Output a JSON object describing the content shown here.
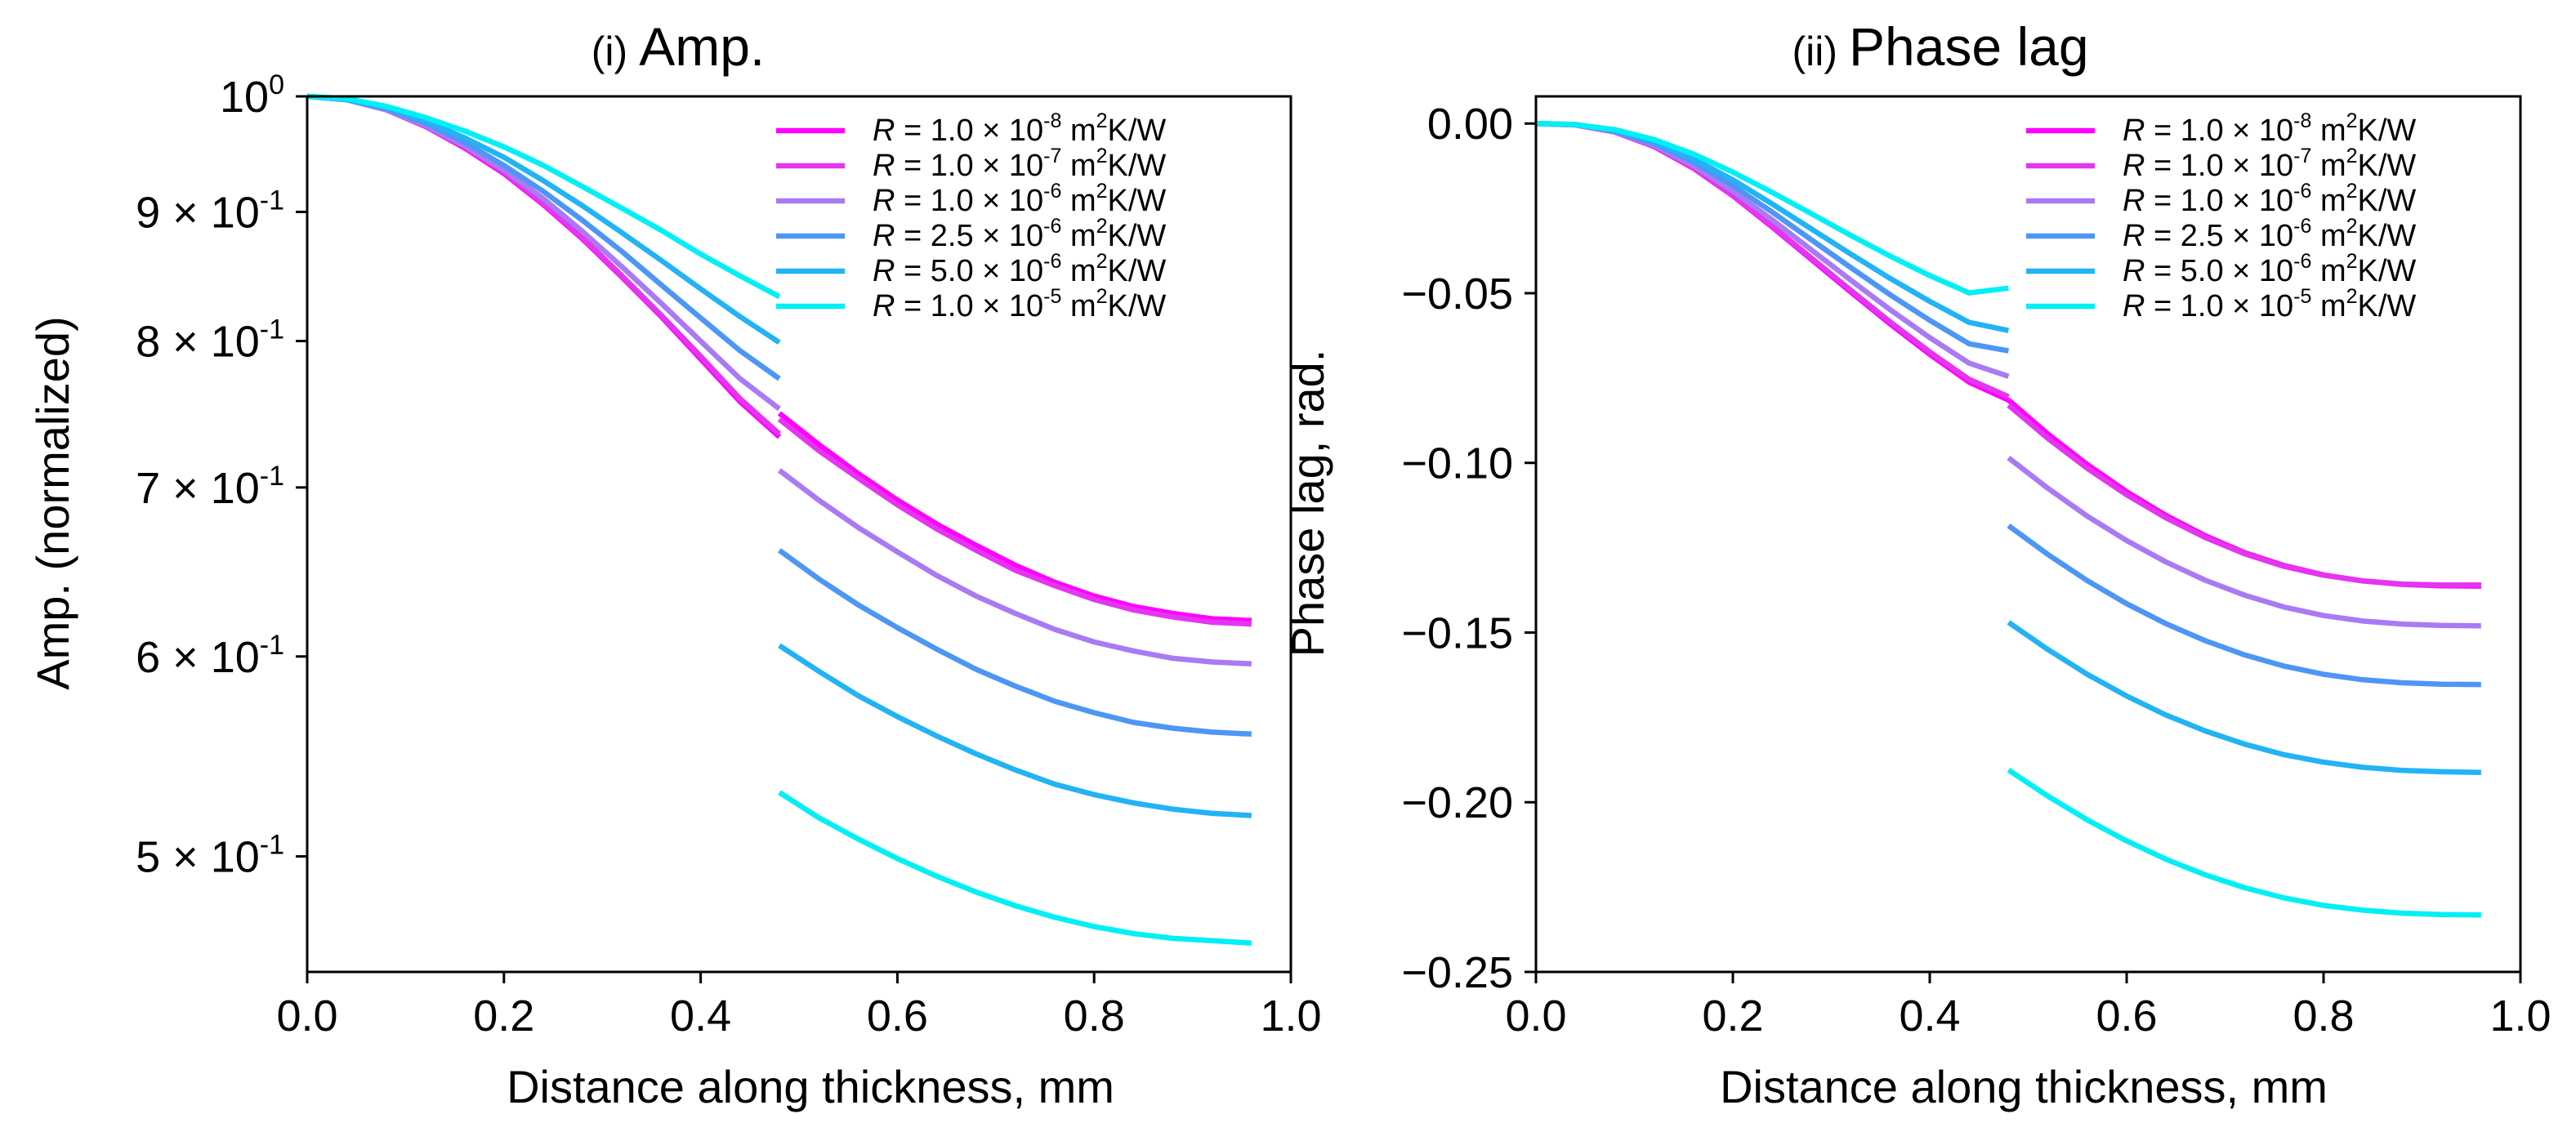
{
  "colors": [
    "#ff00ff",
    "#e535f0",
    "#a97af4",
    "#4d96f5",
    "#22b3f5",
    "#00f0f5"
  ],
  "legend_labels": [
    {
      "var": "R",
      "eq": " = 1.0 × 10",
      "exp": "-8",
      "unit_a": " m",
      "unit_sup": "2",
      "unit_b": "K/W"
    },
    {
      "var": "R",
      "eq": " = 1.0 × 10",
      "exp": "-7",
      "unit_a": " m",
      "unit_sup": "2",
      "unit_b": "K/W"
    },
    {
      "var": "R",
      "eq": " = 1.0 × 10",
      "exp": "-6",
      "unit_a": " m",
      "unit_sup": "2",
      "unit_b": "K/W"
    },
    {
      "var": "R",
      "eq": " = 2.5 × 10",
      "exp": "-6",
      "unit_a": " m",
      "unit_sup": "2",
      "unit_b": "K/W"
    },
    {
      "var": "R",
      "eq": " = 5.0 × 10",
      "exp": "-6",
      "unit_a": " m",
      "unit_sup": "2",
      "unit_b": "K/W"
    },
    {
      "var": "R",
      "eq": " = 1.0 × 10",
      "exp": "-5",
      "unit_a": " m",
      "unit_sup": "2",
      "unit_b": "K/W"
    }
  ],
  "chart_data": [
    {
      "type": "line",
      "title_prefix": "(i)",
      "title": "Amp.",
      "xlabel": "Distance along thickness, mm",
      "ylabel": "Amp. (normalized)",
      "xlim": [
        0.0,
        1.0
      ],
      "ylim": [
        0.45,
        1.0
      ],
      "yscale": "log",
      "xticks": [
        "0.0",
        "0.2",
        "0.4",
        "0.6",
        "0.8",
        "1.0"
      ],
      "yticks": [
        {
          "value": 1.0,
          "base": "10",
          "exp": "0"
        },
        {
          "value": 0.9,
          "base": "9 × 10",
          "exp": "-1"
        },
        {
          "value": 0.8,
          "base": "8 × 10",
          "exp": "-1"
        },
        {
          "value": 0.7,
          "base": "7 × 10",
          "exp": "-1"
        },
        {
          "value": 0.6,
          "base": "6 × 10",
          "exp": "-1"
        },
        {
          "value": 0.5,
          "base": "5 × 10",
          "exp": "-1"
        }
      ],
      "legend_position": "upper right",
      "series": [
        {
          "name": "R = 1.0e-8 m2K/W",
          "layer1_x": [
            0,
            0.04,
            0.08,
            0.12,
            0.16,
            0.2,
            0.24,
            0.28,
            0.32,
            0.36,
            0.4,
            0.44,
            0.48
          ],
          "layer1_y": [
            1.0,
            0.997,
            0.988,
            0.973,
            0.954,
            0.932,
            0.906,
            0.878,
            0.848,
            0.818,
            0.787,
            0.757,
            0.733
          ],
          "layer2_x": [
            0.48,
            0.52,
            0.56,
            0.6,
            0.64,
            0.68,
            0.72,
            0.76,
            0.8,
            0.84,
            0.88,
            0.92,
            0.96
          ],
          "layer2_y": [
            0.749,
            0.728,
            0.709,
            0.692,
            0.677,
            0.664,
            0.652,
            0.642,
            0.634,
            0.628,
            0.624,
            0.621,
            0.62
          ]
        },
        {
          "name": "R = 1.0e-7 m2K/W",
          "layer1_x": [
            0,
            0.04,
            0.08,
            0.12,
            0.16,
            0.2,
            0.24,
            0.28,
            0.32,
            0.36,
            0.4,
            0.44,
            0.48
          ],
          "layer1_y": [
            1.0,
            0.997,
            0.988,
            0.973,
            0.955,
            0.933,
            0.907,
            0.879,
            0.849,
            0.819,
            0.789,
            0.759,
            0.735
          ],
          "layer2_x": [
            0.48,
            0.52,
            0.56,
            0.6,
            0.64,
            0.68,
            0.72,
            0.76,
            0.8,
            0.84,
            0.88,
            0.92,
            0.96
          ],
          "layer2_y": [
            0.745,
            0.724,
            0.706,
            0.689,
            0.674,
            0.661,
            0.649,
            0.64,
            0.632,
            0.626,
            0.622,
            0.619,
            0.618
          ]
        },
        {
          "name": "R = 1.0e-6 m2K/W",
          "layer1_x": [
            0,
            0.04,
            0.08,
            0.12,
            0.16,
            0.2,
            0.24,
            0.28,
            0.32,
            0.36,
            0.4,
            0.44,
            0.48
          ],
          "layer1_y": [
            1.0,
            0.997,
            0.988,
            0.974,
            0.956,
            0.935,
            0.911,
            0.884,
            0.856,
            0.828,
            0.8,
            0.773,
            0.752
          ],
          "layer2_x": [
            0.48,
            0.52,
            0.56,
            0.6,
            0.64,
            0.68,
            0.72,
            0.76,
            0.8,
            0.84,
            0.88,
            0.92,
            0.96
          ],
          "layer2_y": [
            0.711,
            0.692,
            0.675,
            0.66,
            0.646,
            0.634,
            0.624,
            0.615,
            0.608,
            0.603,
            0.599,
            0.597,
            0.596
          ]
        },
        {
          "name": "R = 2.5e-6 m2K/W",
          "layer1_x": [
            0,
            0.04,
            0.08,
            0.12,
            0.16,
            0.2,
            0.24,
            0.28,
            0.32,
            0.36,
            0.4,
            0.44,
            0.48
          ],
          "layer1_y": [
            1.0,
            0.997,
            0.989,
            0.976,
            0.959,
            0.939,
            0.917,
            0.893,
            0.868,
            0.842,
            0.817,
            0.793,
            0.773
          ],
          "layer2_x": [
            0.48,
            0.52,
            0.56,
            0.6,
            0.64,
            0.68,
            0.72,
            0.76,
            0.8,
            0.84,
            0.88,
            0.92,
            0.96
          ],
          "layer2_y": [
            0.661,
            0.644,
            0.629,
            0.616,
            0.604,
            0.593,
            0.584,
            0.576,
            0.57,
            0.565,
            0.562,
            0.56,
            0.559
          ]
        },
        {
          "name": "R = 5.0e-6 m2K/W",
          "layer1_x": [
            0,
            0.04,
            0.08,
            0.12,
            0.16,
            0.2,
            0.24,
            0.28,
            0.32,
            0.36,
            0.4,
            0.44,
            0.48
          ],
          "layer1_y": [
            1.0,
            0.997,
            0.99,
            0.978,
            0.963,
            0.946,
            0.926,
            0.905,
            0.883,
            0.861,
            0.839,
            0.818,
            0.799
          ],
          "layer2_x": [
            0.48,
            0.52,
            0.56,
            0.6,
            0.64,
            0.68,
            0.72,
            0.76,
            0.8,
            0.84,
            0.88,
            0.92,
            0.96
          ],
          "layer2_y": [
            0.606,
            0.592,
            0.579,
            0.568,
            0.558,
            0.549,
            0.541,
            0.534,
            0.529,
            0.525,
            0.522,
            0.52,
            0.519
          ]
        },
        {
          "name": "R = 1.0e-5 m2K/W",
          "layer1_x": [
            0,
            0.04,
            0.08,
            0.12,
            0.16,
            0.2,
            0.24,
            0.28,
            0.32,
            0.36,
            0.4,
            0.44,
            0.48
          ],
          "layer1_y": [
            1.0,
            0.998,
            0.991,
            0.981,
            0.969,
            0.955,
            0.939,
            0.921,
            0.903,
            0.885,
            0.866,
            0.849,
            0.833
          ],
          "layer2_x": [
            0.48,
            0.52,
            0.56,
            0.6,
            0.64,
            0.68,
            0.72,
            0.76,
            0.8,
            0.84,
            0.88,
            0.92,
            0.96
          ],
          "layer2_y": [
            0.53,
            0.518,
            0.508,
            0.499,
            0.491,
            0.484,
            0.478,
            0.473,
            0.469,
            0.466,
            0.464,
            0.463,
            0.462
          ]
        }
      ]
    },
    {
      "type": "line",
      "title_prefix": "(ii)",
      "title": "Phase lag",
      "xlabel": "Distance along thickness, mm",
      "ylabel": "Phase lag, rad.",
      "xlim": [
        0.0,
        1.0
      ],
      "ylim": [
        -0.25,
        0.008
      ],
      "yscale": "linear",
      "xticks": [
        "0.0",
        "0.2",
        "0.4",
        "0.6",
        "0.8",
        "1.0"
      ],
      "yticks": [
        {
          "value": 0.0,
          "label": "0.00"
        },
        {
          "value": -0.05,
          "label": "−0.05"
        },
        {
          "value": -0.1,
          "label": "−0.10"
        },
        {
          "value": -0.15,
          "label": "−0.15"
        },
        {
          "value": -0.2,
          "label": "−0.20"
        },
        {
          "value": -0.25,
          "label": "−0.25"
        }
      ],
      "legend_position": "upper right",
      "series": [
        {
          "name": "R = 1.0e-8 m2K/W",
          "layer1_x": [
            0,
            0.04,
            0.08,
            0.12,
            0.16,
            0.2,
            0.24,
            0.28,
            0.32,
            0.36,
            0.4,
            0.44,
            0.48
          ],
          "layer1_y": [
            0,
            -0.0004,
            -0.0025,
            -0.0068,
            -0.0132,
            -0.0213,
            -0.0305,
            -0.0401,
            -0.0497,
            -0.0591,
            -0.068,
            -0.0762,
            -0.0815
          ],
          "layer2_x": [
            0.48,
            0.52,
            0.56,
            0.6,
            0.64,
            0.68,
            0.72,
            0.76,
            0.8,
            0.84,
            0.88,
            0.92,
            0.96
          ],
          "layer2_y": [
            -0.0815,
            -0.0915,
            -0.1005,
            -0.1085,
            -0.1155,
            -0.1215,
            -0.1265,
            -0.1303,
            -0.133,
            -0.1348,
            -0.1358,
            -0.1362,
            -0.1363
          ]
        },
        {
          "name": "R = 1.0e-7 m2K/W",
          "layer1_x": [
            0,
            0.04,
            0.08,
            0.12,
            0.16,
            0.2,
            0.24,
            0.28,
            0.32,
            0.36,
            0.4,
            0.44,
            0.48
          ],
          "layer1_y": [
            0,
            -0.0004,
            -0.0025,
            -0.0068,
            -0.0131,
            -0.0211,
            -0.0302,
            -0.0397,
            -0.0492,
            -0.0585,
            -0.0673,
            -0.0754,
            -0.0805
          ],
          "layer2_x": [
            0.48,
            0.52,
            0.56,
            0.6,
            0.64,
            0.68,
            0.72,
            0.76,
            0.8,
            0.84,
            0.88,
            0.92,
            0.96
          ],
          "layer2_y": [
            -0.083,
            -0.0928,
            -0.1016,
            -0.1094,
            -0.1162,
            -0.122,
            -0.1268,
            -0.1305,
            -0.1331,
            -0.1348,
            -0.1357,
            -0.136,
            -0.136
          ]
        },
        {
          "name": "R = 1.0e-6 m2K/W",
          "layer1_x": [
            0,
            0.04,
            0.08,
            0.12,
            0.16,
            0.2,
            0.24,
            0.28,
            0.32,
            0.36,
            0.4,
            0.44,
            0.48
          ],
          "layer1_y": [
            0,
            -0.0004,
            -0.0024,
            -0.0064,
            -0.0124,
            -0.0199,
            -0.0284,
            -0.0373,
            -0.0462,
            -0.0549,
            -0.0631,
            -0.0706,
            -0.0745
          ],
          "layer2_x": [
            0.48,
            0.52,
            0.56,
            0.6,
            0.64,
            0.68,
            0.72,
            0.76,
            0.8,
            0.84,
            0.88,
            0.92,
            0.96
          ],
          "layer2_y": [
            -0.0985,
            -0.1075,
            -0.1157,
            -0.1229,
            -0.1292,
            -0.1346,
            -0.139,
            -0.1425,
            -0.145,
            -0.1466,
            -0.1475,
            -0.1479,
            -0.148
          ]
        },
        {
          "name": "R = 2.5e-6 m2K/W",
          "layer1_x": [
            0,
            0.04,
            0.08,
            0.12,
            0.16,
            0.2,
            0.24,
            0.28,
            0.32,
            0.36,
            0.4,
            0.44,
            0.48
          ],
          "layer1_y": [
            0,
            -0.0003,
            -0.0022,
            -0.0059,
            -0.0114,
            -0.0183,
            -0.0261,
            -0.0343,
            -0.0425,
            -0.0505,
            -0.058,
            -0.0649,
            -0.067
          ],
          "layer2_x": [
            0.48,
            0.52,
            0.56,
            0.6,
            0.64,
            0.68,
            0.72,
            0.76,
            0.8,
            0.84,
            0.88,
            0.92,
            0.96
          ],
          "layer2_y": [
            -0.1185,
            -0.127,
            -0.1347,
            -0.1415,
            -0.1474,
            -0.1524,
            -0.1566,
            -0.1599,
            -0.1623,
            -0.1639,
            -0.1648,
            -0.1652,
            -0.1653
          ]
        },
        {
          "name": "R = 5.0e-6 m2K/W",
          "layer1_x": [
            0,
            0.04,
            0.08,
            0.12,
            0.16,
            0.2,
            0.24,
            0.28,
            0.32,
            0.36,
            0.4,
            0.44,
            0.48
          ],
          "layer1_y": [
            0,
            -0.0003,
            -0.002,
            -0.0054,
            -0.0104,
            -0.0166,
            -0.0237,
            -0.0311,
            -0.0385,
            -0.0457,
            -0.0524,
            -0.0586,
            -0.061
          ],
          "layer2_x": [
            0.48,
            0.52,
            0.56,
            0.6,
            0.64,
            0.68,
            0.72,
            0.76,
            0.8,
            0.84,
            0.88,
            0.92,
            0.96
          ],
          "layer2_y": [
            -0.147,
            -0.155,
            -0.1623,
            -0.1687,
            -0.1743,
            -0.179,
            -0.1829,
            -0.186,
            -0.1882,
            -0.1897,
            -0.1906,
            -0.191,
            -0.1912
          ]
        },
        {
          "name": "R = 1.0e-5 m2K/W",
          "layer1_x": [
            0,
            0.04,
            0.08,
            0.12,
            0.16,
            0.2,
            0.24,
            0.28,
            0.32,
            0.36,
            0.4,
            0.44,
            0.48
          ],
          "layer1_y": [
            0,
            -0.0003,
            -0.0018,
            -0.0047,
            -0.009,
            -0.0143,
            -0.0203,
            -0.0266,
            -0.033,
            -0.0391,
            -0.0448,
            -0.0499,
            -0.0485
          ],
          "layer2_x": [
            0.48,
            0.52,
            0.56,
            0.6,
            0.64,
            0.68,
            0.72,
            0.76,
            0.8,
            0.84,
            0.88,
            0.92,
            0.96
          ],
          "layer2_y": [
            -0.1905,
            -0.1982,
            -0.2052,
            -0.2114,
            -0.2168,
            -0.2214,
            -0.2252,
            -0.2282,
            -0.2304,
            -0.2318,
            -0.2327,
            -0.2331,
            -0.2332
          ]
        }
      ]
    }
  ]
}
